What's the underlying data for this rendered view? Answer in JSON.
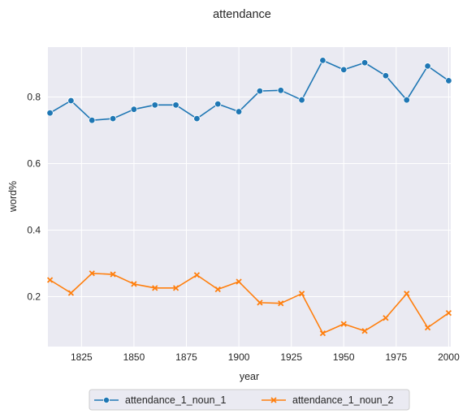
{
  "chart_data": {
    "type": "line",
    "title": "attendance",
    "xlabel": "year",
    "ylabel": "word%",
    "xlim": [
      1809,
      2001
    ],
    "ylim": [
      0.05,
      0.95
    ],
    "xticks": [
      1825,
      1850,
      1875,
      1900,
      1925,
      1950,
      1975,
      2000
    ],
    "yticks": [
      0.2,
      0.4,
      0.6,
      0.8
    ],
    "x": [
      1810,
      1820,
      1830,
      1840,
      1850,
      1860,
      1870,
      1880,
      1890,
      1900,
      1910,
      1920,
      1930,
      1940,
      1950,
      1960,
      1970,
      1980,
      1990,
      2000
    ],
    "series": [
      {
        "name": "attendance_1_noun_1",
        "color": "#1f77b4",
        "marker": "circle",
        "values": [
          0.752,
          0.789,
          0.73,
          0.735,
          0.763,
          0.776,
          0.776,
          0.735,
          0.779,
          0.756,
          0.818,
          0.82,
          0.791,
          0.91,
          0.882,
          0.903,
          0.864,
          0.791,
          0.893,
          0.849
        ]
      },
      {
        "name": "attendance_1_noun_2",
        "color": "#ff7f0e",
        "marker": "x",
        "values": [
          0.25,
          0.211,
          0.27,
          0.267,
          0.238,
          0.226,
          0.226,
          0.265,
          0.222,
          0.245,
          0.182,
          0.18,
          0.209,
          0.09,
          0.118,
          0.097,
          0.136,
          0.209,
          0.107,
          0.151
        ]
      }
    ],
    "grid": true,
    "legend_position": "bottom-center"
  }
}
